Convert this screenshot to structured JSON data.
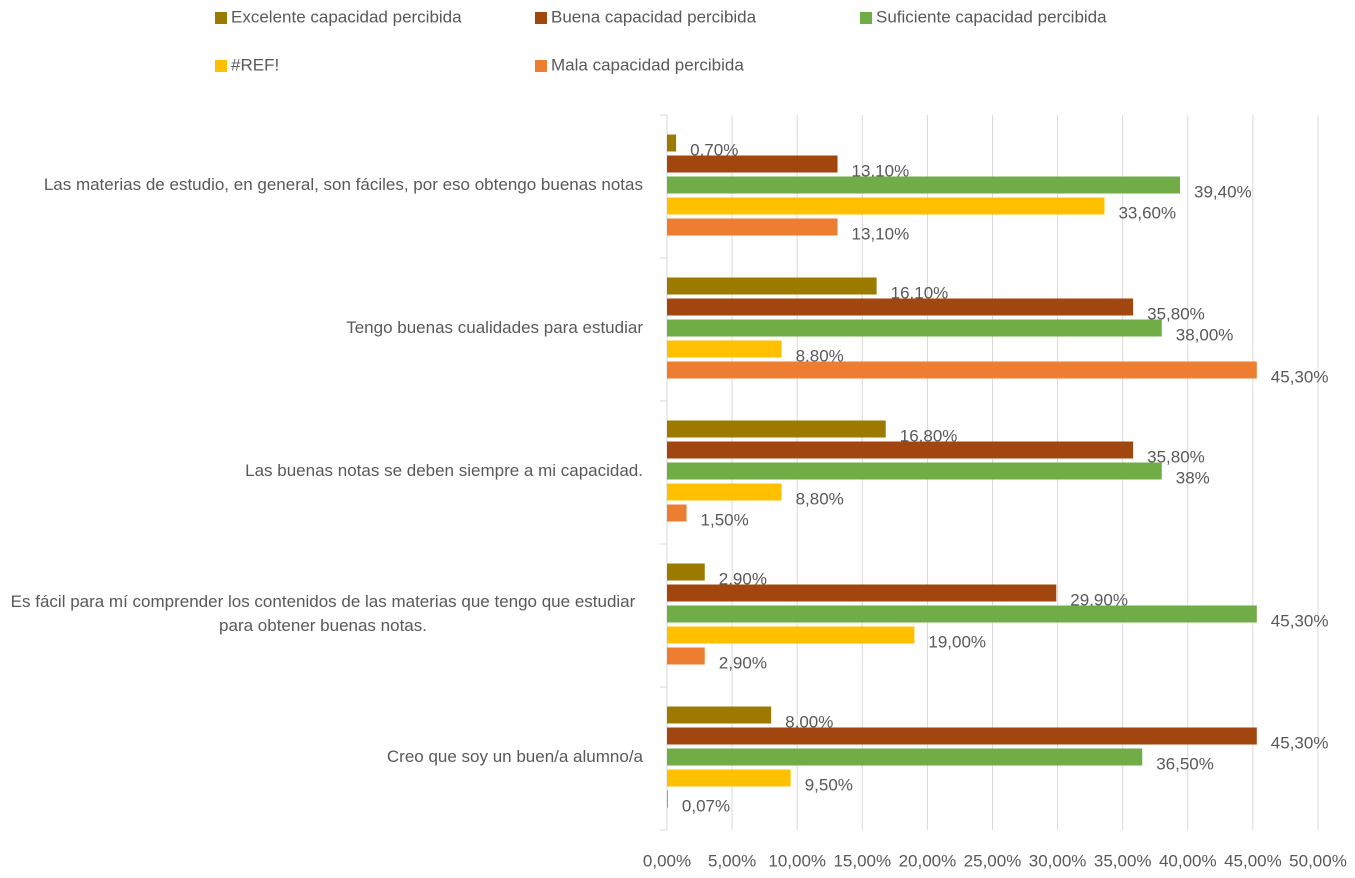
{
  "chart_data": {
    "type": "hbar",
    "categories": [
      "Las materias de estudio, en general, son fáciles, por eso obtengo buenas notas",
      "Tengo buenas cualidades para estudiar",
      "Las buenas notas se deben siempre a mi capacidad.",
      "Es fácil para mí comprender los contenidos de las materias que tengo que estudiar para obtener buenas notas.",
      "Creo que soy un buen/a alumno/a"
    ],
    "series": [
      {
        "name": "Excelente capacidad percibida",
        "color": "#9c7a00",
        "values": [
          0.7,
          16.1,
          16.8,
          2.9,
          8.0
        ],
        "value_labels": [
          "0,70%",
          "16,10%",
          "16,80%",
          "2,90%",
          "8,00%"
        ]
      },
      {
        "name": "Buena capacidad percibida",
        "color": "#a0460e",
        "values": [
          13.1,
          35.8,
          35.8,
          29.9,
          45.3
        ],
        "value_labels": [
          "13,10%",
          "35,80%",
          "35,80%",
          "29,90%",
          "45,30%"
        ]
      },
      {
        "name": "Suficiente capacidad percibida",
        "color": "#70ad47",
        "values": [
          39.4,
          38.0,
          38,
          45.3,
          36.5
        ],
        "value_labels": [
          "39,40%",
          "38,00%",
          "38%",
          "45,30%",
          "36,50%"
        ]
      },
      {
        "name": "#REF!",
        "color": "#ffc000",
        "values": [
          33.6,
          8.8,
          8.8,
          19.0,
          9.5
        ],
        "value_labels": [
          "33,60%",
          "8,80%",
          "8,80%",
          "19,00%",
          "9,50%"
        ]
      },
      {
        "name": "Mala capacidad percibida",
        "color": "#ed7d31",
        "values": [
          13.1,
          45.3,
          1.5,
          2.9,
          0.07
        ],
        "value_labels": [
          "13,10%",
          "45,30%",
          "1,50%",
          "2,90%",
          "0,07%"
        ]
      }
    ],
    "xlim": [
      0,
      50
    ],
    "xticks": [
      {
        "value": 0,
        "label": "0,00%"
      },
      {
        "value": 5,
        "label": "5,00%"
      },
      {
        "value": 10,
        "label": "10,00%"
      },
      {
        "value": 15,
        "label": "15,00%"
      },
      {
        "value": 20,
        "label": "20,00%"
      },
      {
        "value": 25,
        "label": "25,00%"
      },
      {
        "value": 30,
        "label": "30,00%"
      },
      {
        "value": 35,
        "label": "35,00%"
      },
      {
        "value": 40,
        "label": "40,00%"
      },
      {
        "value": 45,
        "label": "45,00%"
      },
      {
        "value": 50,
        "label": "50,00%"
      }
    ],
    "grid": true,
    "legend": "top"
  }
}
